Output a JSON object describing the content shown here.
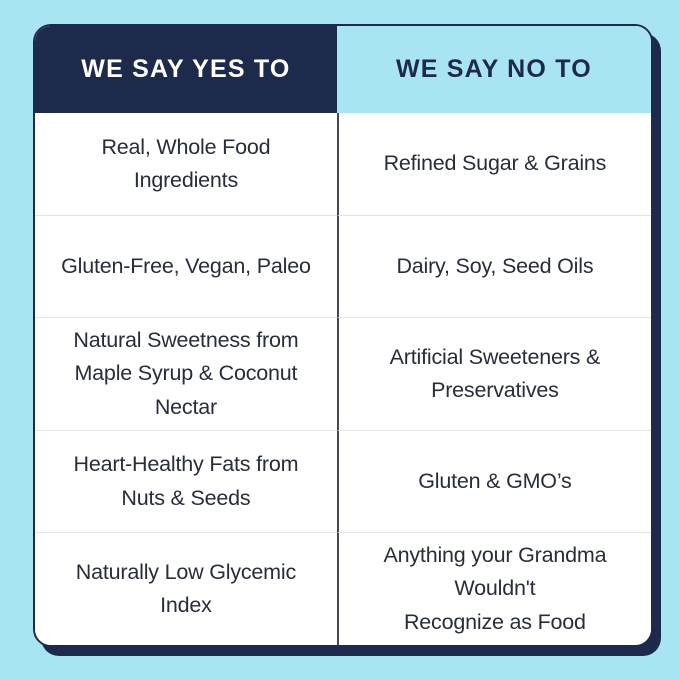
{
  "meta": {
    "title": "Yes/No ingredient comparison chart"
  },
  "colors": {
    "page_background": "#a9e4f2",
    "navy": "#1d2a4b",
    "header_no_background": "#a9e4f2",
    "body_text": "#272e3a",
    "column_divider": "#454a52",
    "row_divider": "#e4e4e4",
    "cell_background": "#ffffff"
  },
  "table": {
    "headers": {
      "yes": "WE SAY YES TO",
      "no": "WE SAY NO TO"
    },
    "rows": [
      {
        "yes": "Real, Whole Food Ingredients",
        "no": "Refined Sugar & Grains"
      },
      {
        "yes": "Gluten-Free, Vegan, Paleo",
        "no": "Dairy, Soy, Seed Oils"
      },
      {
        "yes": "Natural Sweetness from\nMaple Syrup & Coconut Nectar",
        "no": "Artificial Sweeteners &\nPreservatives"
      },
      {
        "yes": "Heart-Healthy Fats from\nNuts & Seeds",
        "no": "Gluten & GMO’s"
      },
      {
        "yes": "Naturally Low Glycemic Index",
        "no": "Anything your Grandma Wouldn't\nRecognize as Food"
      }
    ]
  }
}
